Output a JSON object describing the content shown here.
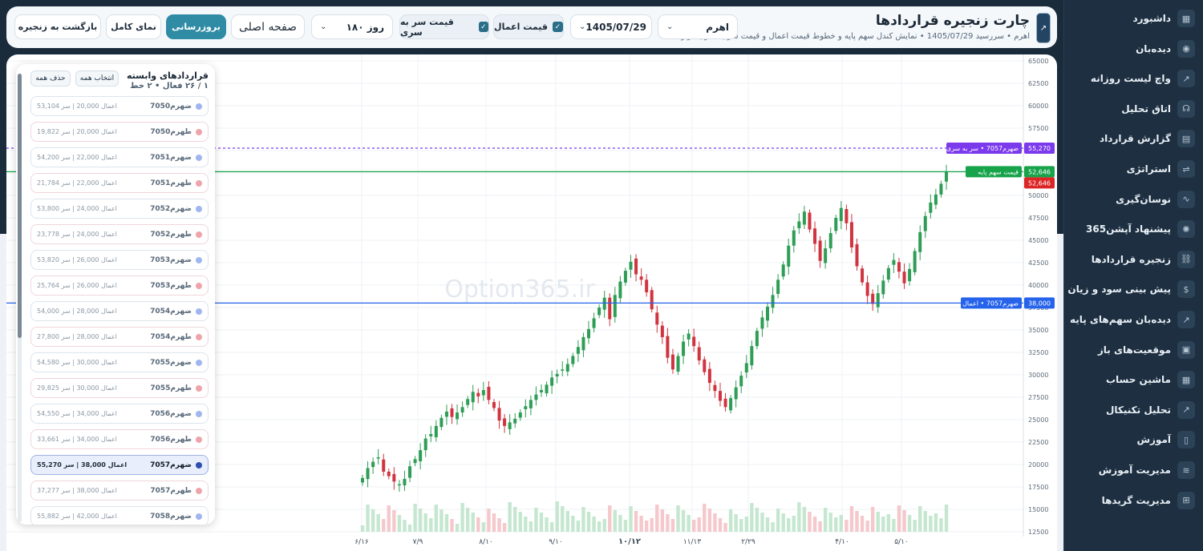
{
  "sidebar": {
    "items": [
      {
        "label": "داشبورد",
        "icon": "dashboard-grid-icon",
        "glyph": "▦"
      },
      {
        "label": "دیده‌بان",
        "icon": "eye-icon",
        "glyph": "◉"
      },
      {
        "label": "واچ لیست روزانه",
        "icon": "trend-chart-icon",
        "glyph": "↗"
      },
      {
        "label": "اتاق تحلیل",
        "icon": "headset-icon",
        "glyph": "☊"
      },
      {
        "label": "گزارش قرارداد",
        "icon": "document-icon",
        "glyph": "▤"
      },
      {
        "label": "استراتژی",
        "icon": "strategy-icon",
        "glyph": "⇌"
      },
      {
        "label": "نوسان‌گیری",
        "icon": "wave-chart-icon",
        "glyph": "∿"
      },
      {
        "label": "پیشنهاد آپشن365",
        "icon": "sparkle-icon",
        "glyph": "✺"
      },
      {
        "label": "زنجیره قراردادها",
        "icon": "chain-link-icon",
        "glyph": "⛓"
      },
      {
        "label": "پیش بینی سود و زیان",
        "icon": "dollar-icon",
        "glyph": "$"
      },
      {
        "label": "دیده‌بان سهم‌های پایه",
        "icon": "line-chart-icon",
        "glyph": "↗"
      },
      {
        "label": "موقعیت‌های باز",
        "icon": "calculator-icon",
        "glyph": "▣"
      },
      {
        "label": "ماشین حساب",
        "icon": "grid-calculator-icon",
        "glyph": "▦"
      },
      {
        "label": "تحلیل تکنیکال",
        "icon": "technical-chart-icon",
        "glyph": "↗"
      },
      {
        "label": "آموزش",
        "icon": "book-icon",
        "glyph": "▯"
      },
      {
        "label": "مدیریت آموزش",
        "icon": "layers-icon",
        "glyph": "≋"
      },
      {
        "label": "مدیریت گریدها",
        "icon": "grid-plus-icon",
        "glyph": "⊞"
      }
    ]
  },
  "header": {
    "title": "چارت زنجیره قراردادها",
    "subtitle": "اهرم • سررسید 1405/07/29 • نمایش کندل سهم پایه و خطوط قیمت اعمال و قیمت سر به سری قراردادها",
    "symbol": "اهرم",
    "expiry": "1405/07/29",
    "chk_strike": "قیمت اعمال",
    "chk_breakeven": "قیمت سر به سری",
    "period": "۱۸۰ روز",
    "home": "صفحه اصلی",
    "update": "بروزرسانی",
    "fullscreen": "نمای کامل",
    "back": "بازگشت به زنجیره"
  },
  "contracts": {
    "title": "قراردادهای وابسته",
    "summary": "۱ / ۲۶ فعال • ۲ خط",
    "select_all": "انتخاب همه",
    "clear_all": "حذف همه",
    "items": [
      {
        "name": "ضهرم7050",
        "info": "اعمال 20,000 | سر 53,104",
        "type": "call",
        "selected": false
      },
      {
        "name": "طهرم7050",
        "info": "اعمال 20,000 | سر 19,822",
        "type": "put",
        "selected": false
      },
      {
        "name": "ضهرم7051",
        "info": "اعمال 22,000 | سر 54,200",
        "type": "call",
        "selected": false
      },
      {
        "name": "طهرم7051",
        "info": "اعمال 22,000 | سر 21,784",
        "type": "put",
        "selected": false
      },
      {
        "name": "ضهرم7052",
        "info": "اعمال 24,000 | سر 53,800",
        "type": "call",
        "selected": false
      },
      {
        "name": "طهرم7052",
        "info": "اعمال 24,000 | سر 23,778",
        "type": "put",
        "selected": false
      },
      {
        "name": "ضهرم7053",
        "info": "اعمال 26,000 | سر 53,820",
        "type": "call",
        "selected": false
      },
      {
        "name": "طهرم7053",
        "info": "اعمال 26,000 | سر 25,764",
        "type": "put",
        "selected": false
      },
      {
        "name": "ضهرم7054",
        "info": "اعمال 28,000 | سر 54,000",
        "type": "call",
        "selected": false
      },
      {
        "name": "طهرم7054",
        "info": "اعمال 28,000 | سر 27,800",
        "type": "put",
        "selected": false
      },
      {
        "name": "ضهرم7055",
        "info": "اعمال 30,000 | سر 54,580",
        "type": "call",
        "selected": false
      },
      {
        "name": "طهرم7055",
        "info": "اعمال 30,000 | سر 29,825",
        "type": "put",
        "selected": false
      },
      {
        "name": "ضهرم7056",
        "info": "اعمال 34,000 | سر 54,550",
        "type": "call",
        "selected": false
      },
      {
        "name": "طهرم7056",
        "info": "اعمال 34,000 | سر 33,661",
        "type": "put",
        "selected": false
      },
      {
        "name": "ضهرم7057",
        "info": "اعمال 38,000 | سر 55,270",
        "type": "call",
        "selected": true
      },
      {
        "name": "طهرم7057",
        "info": "اعمال 38,000 | سر 37,277",
        "type": "put",
        "selected": false
      },
      {
        "name": "ضهرم7058",
        "info": "اعمال 42,000 | سر 55,882",
        "type": "call",
        "selected": false
      }
    ]
  },
  "colors": {
    "call_dot": "#9fb6ee",
    "put_dot": "#eea4aa",
    "selected_dot": "#2d4fb3",
    "up_candle": "#2e9d55",
    "down_candle": "#d0343f",
    "breakeven_line": "#7c3aed",
    "base_line": "#16a34a",
    "strike_line": "#2563eb"
  },
  "chart_data": {
    "type": "candlestick",
    "watermark": "Option365.ir",
    "ylim": [
      12500,
      65000
    ],
    "yticks": [
      12500,
      15000,
      17500,
      20000,
      22500,
      25000,
      27500,
      30000,
      32500,
      35000,
      37500,
      40000,
      42500,
      45000,
      47500,
      50000,
      52500,
      55000,
      57500,
      60000,
      62500,
      65000
    ],
    "xticks": [
      "۶/۱۶",
      "۷/۹",
      "۸/۱۰",
      "۹/۱۰",
      "۱۰/۱۲",
      "۱۱/۱۳",
      "۲/۲۹",
      "۴/۱۰",
      "۵/۱۰"
    ],
    "close_series": [
      18500,
      19600,
      20300,
      20800,
      19200,
      18700,
      18100,
      17800,
      18400,
      19800,
      20600,
      21600,
      22900,
      23400,
      24300,
      25200,
      25900,
      25300,
      25800,
      26400,
      27300,
      28100,
      27600,
      28300,
      27200,
      26300,
      24900,
      24300,
      24700,
      25100,
      25800,
      26500,
      27200,
      27800,
      28300,
      28900,
      29700,
      30100,
      30600,
      31200,
      32100,
      33100,
      34200,
      35100,
      36300,
      37500,
      38600,
      36200,
      38900,
      40400,
      41600,
      42600,
      41200,
      40600,
      39200,
      37300,
      35600,
      34200,
      31900,
      30600,
      32100,
      33700,
      34600,
      33200,
      31600,
      30300,
      29100,
      28200,
      27100,
      26400,
      27400,
      28600,
      29900,
      31300,
      33200,
      34900,
      36400,
      37600,
      38900,
      40600,
      42300,
      44400,
      46100,
      47100,
      48200,
      46200,
      44600,
      42700,
      44100,
      45800,
      47500,
      48600,
      46900,
      44200,
      42100,
      40300,
      38800,
      37900,
      39100,
      40500,
      41900,
      42800,
      41500,
      40200,
      41800,
      43800,
      45900,
      47700,
      49200,
      50100,
      51300,
      52646
    ],
    "strike_line": {
      "value": 38000,
      "label": "ضهرم7057 • اعمال",
      "value_label": "38,000"
    },
    "breakeven_line": {
      "value": 55270,
      "label": "ضهرم7057 • سر به سری",
      "value_label": "55,270"
    },
    "base_price_line": {
      "value": 52646,
      "label": "قیمت سهم پایه",
      "value_label": "52,646"
    },
    "last_price_label": "52,646"
  }
}
